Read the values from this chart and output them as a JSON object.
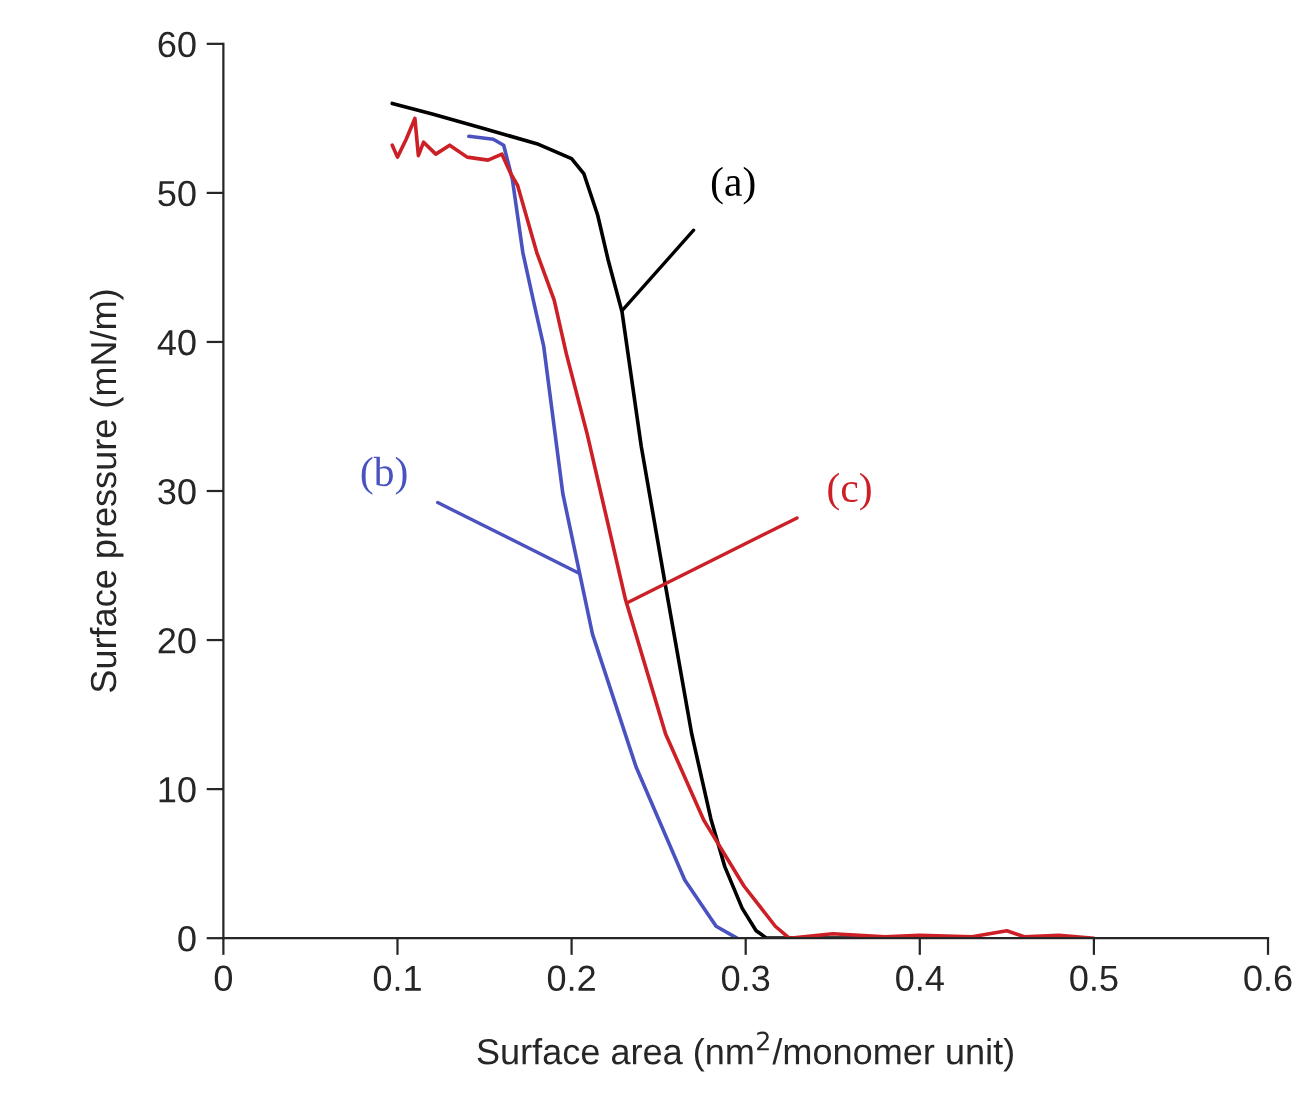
{
  "chart_data": {
    "type": "line",
    "xlabel": "Surface area (nm$^{2}$/monomer unit)",
    "ylabel": "Surface pressure (mN/m)",
    "xlim": [
      0,
      0.6
    ],
    "xticks": [
      0,
      0.1,
      0.2,
      0.3,
      0.4,
      0.5,
      0.6
    ],
    "ylim": [
      0,
      60
    ],
    "yticks": [
      0,
      10,
      20,
      30,
      40,
      50,
      60
    ],
    "grid": false,
    "legend": false,
    "marker": "none",
    "line_style": "solid",
    "series": [
      {
        "color": "#000000",
        "x": [
          0.097,
          0.12,
          0.15,
          0.18,
          0.2,
          0.207,
          0.215,
          0.221,
          0.229,
          0.24,
          0.254,
          0.269,
          0.28,
          0.288,
          0.298,
          0.306,
          0.312,
          0.35,
          0.4
        ],
        "values": [
          56,
          55.3,
          54.3,
          53.3,
          52.3,
          51.3,
          48.5,
          45.5,
          42,
          33,
          23.6,
          13.7,
          8,
          4.8,
          2,
          0.5,
          0,
          0,
          0
        ]
      },
      {
        "color": "#4a52c0",
        "x": [
          0.141,
          0.155,
          0.161,
          0.166,
          0.172,
          0.178,
          0.184,
          0.195,
          0.212,
          0.237,
          0.265,
          0.283,
          0.295
        ],
        "values": [
          53.8,
          53.6,
          53.2,
          50.9,
          46,
          42.8,
          39.7,
          29.8,
          20.4,
          11.5,
          3.9,
          0.8,
          0
        ]
      },
      {
        "color": "#cc1f26",
        "x": [
          0.097,
          0.1,
          0.105,
          0.11,
          0.112,
          0.115,
          0.122,
          0.13,
          0.14,
          0.152,
          0.16,
          0.165,
          0.169,
          0.18,
          0.19,
          0.197,
          0.209,
          0.231,
          0.254,
          0.276,
          0.299,
          0.317,
          0.325,
          0.35,
          0.38,
          0.4,
          0.43,
          0.45,
          0.46,
          0.48,
          0.5
        ],
        "values": [
          53.2,
          52.4,
          53.6,
          55,
          52.5,
          53.4,
          52.6,
          53.2,
          52.4,
          52.2,
          52.6,
          51.3,
          50.5,
          46,
          42.8,
          39.2,
          33.8,
          22.7,
          13.7,
          7.9,
          3.5,
          0.8,
          0,
          0.3,
          0.1,
          0.2,
          0.1,
          0.5,
          0.1,
          0.2,
          0
        ]
      }
    ],
    "annotations": [
      {
        "text": "(a)",
        "x": 0.229,
        "y": 42.1
      },
      {
        "text": "(b)",
        "x": 0.204,
        "y": 24.5
      },
      {
        "text": "(c)",
        "x": 0.232,
        "y": 22.5
      }
    ]
  }
}
